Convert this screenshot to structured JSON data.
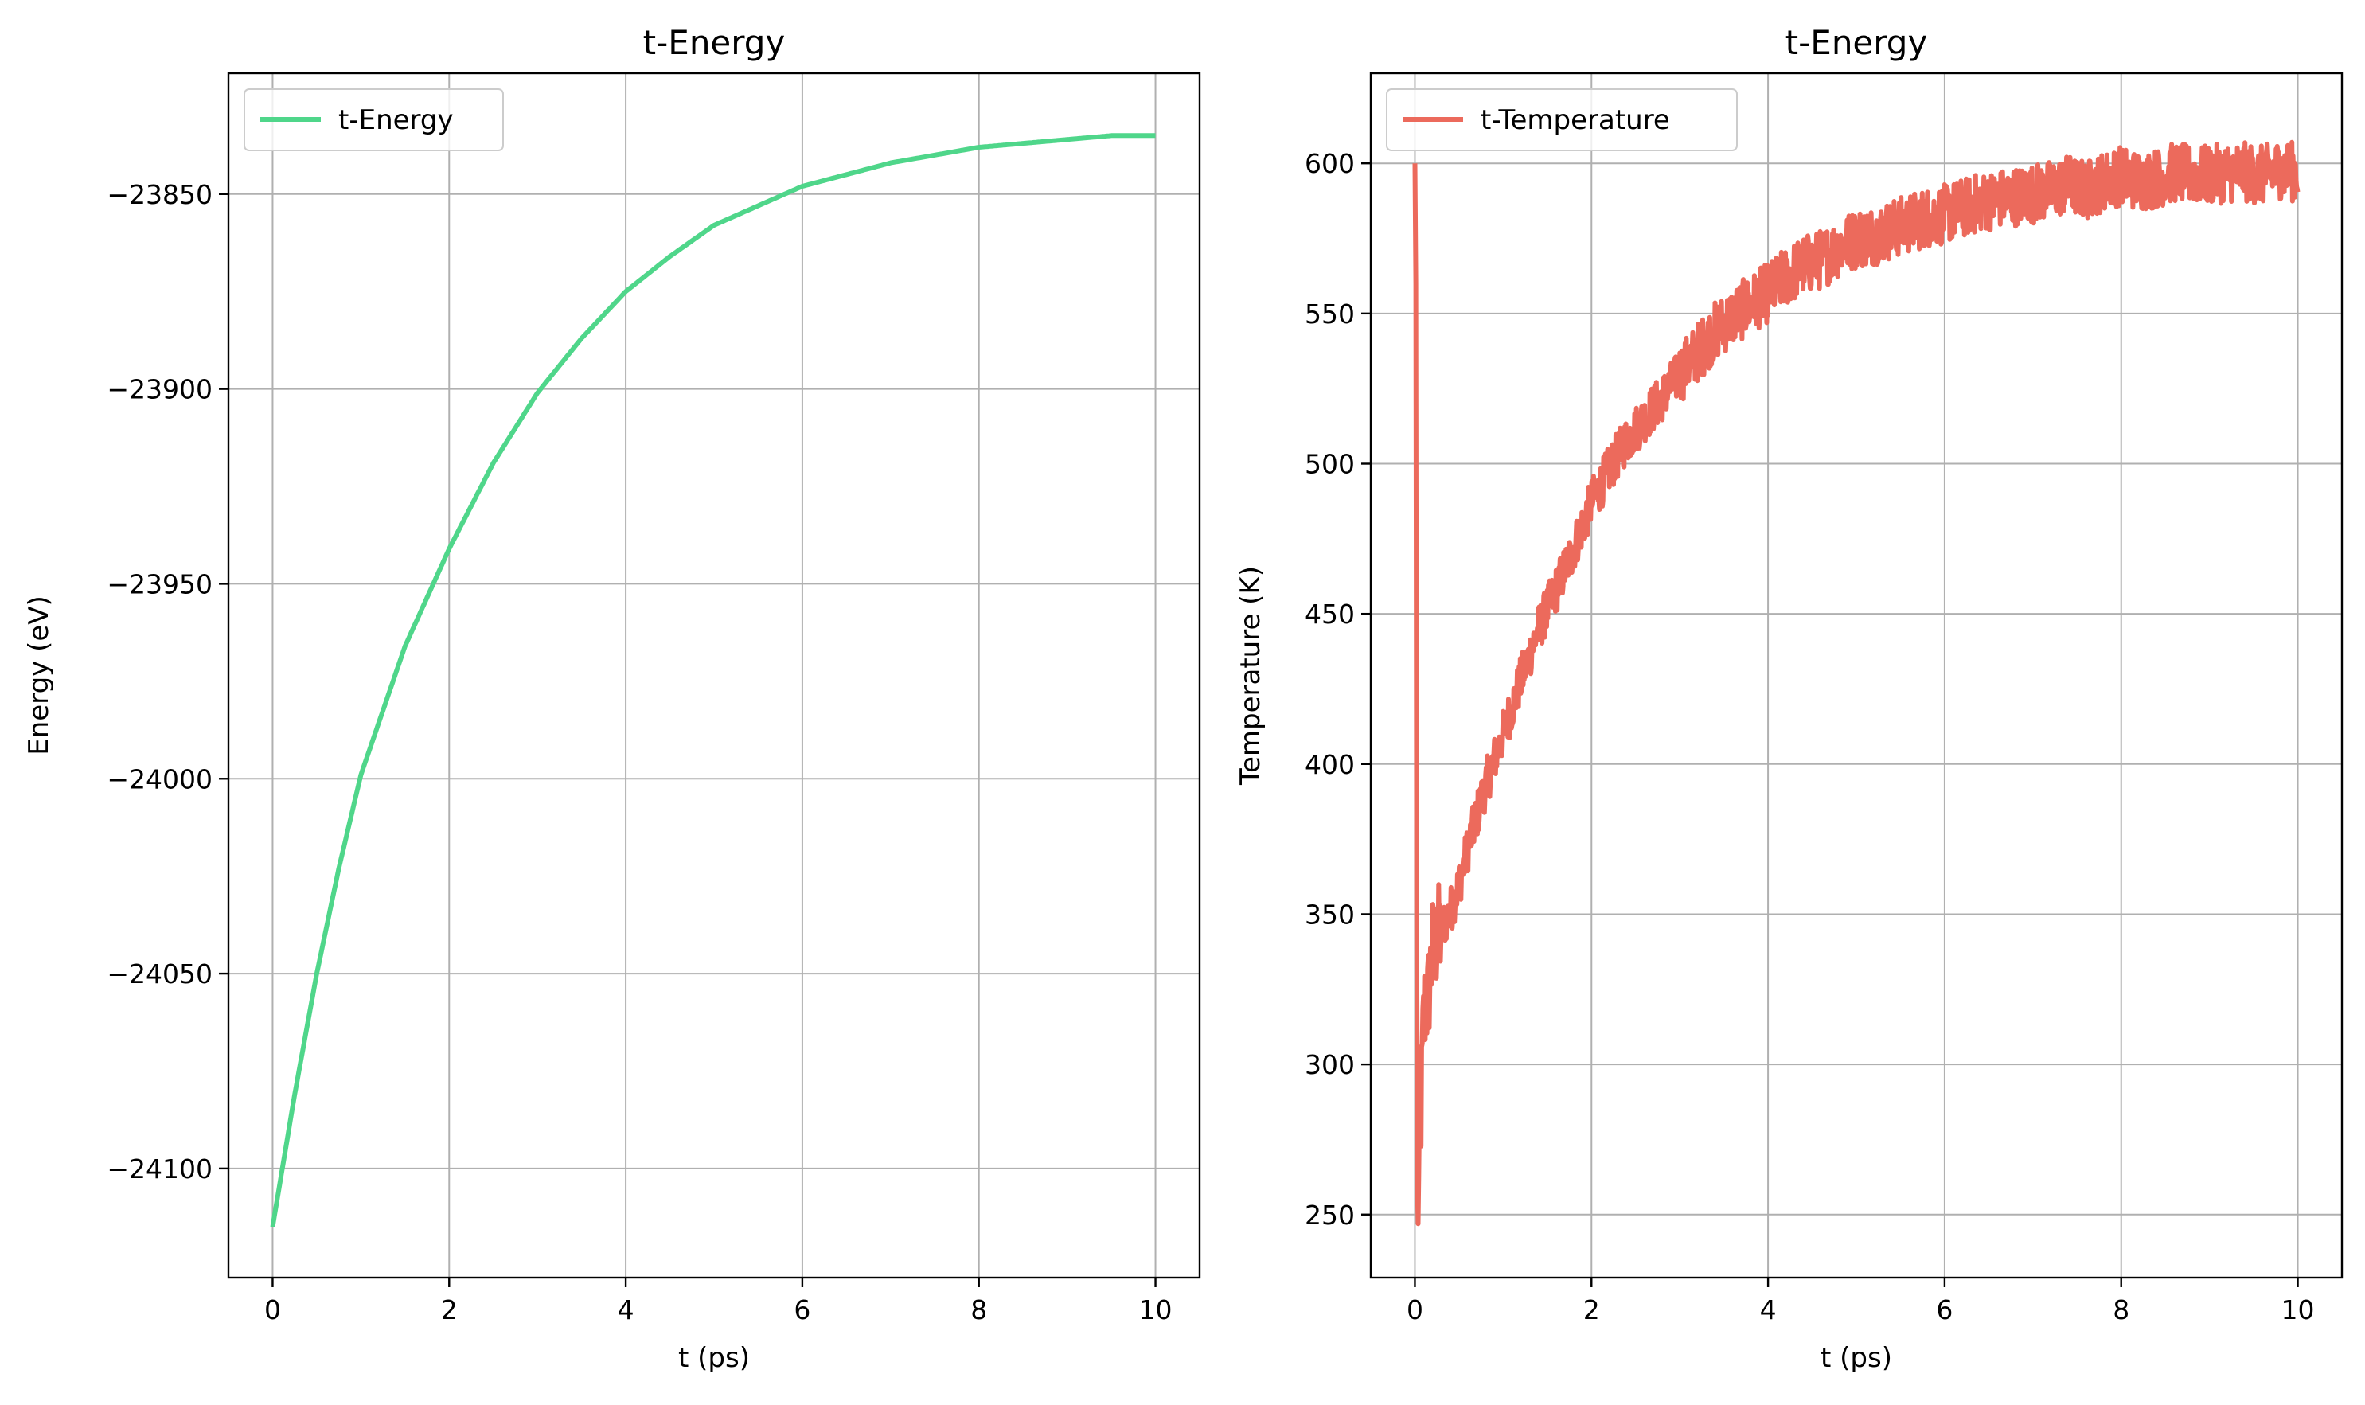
{
  "chart_data": [
    {
      "type": "line",
      "title": "t-Energy",
      "xlabel": "t (ps)",
      "ylabel": "Energy (eV)",
      "xlim": [
        -0.5,
        10.5
      ],
      "ylim": [
        -24128,
        -23819
      ],
      "xticks": [
        0,
        2,
        4,
        6,
        8,
        10
      ],
      "yticks": [
        -24100,
        -24050,
        -24000,
        -23950,
        -23900,
        -23850
      ],
      "ytick_labels": [
        "−24100",
        "−24050",
        "−24000",
        "−23950",
        "−23900",
        "−23850"
      ],
      "grid": true,
      "legend_position": "top-left",
      "series": [
        {
          "name": "t-Energy",
          "color": "#4fd68a",
          "x": [
            0,
            0.25,
            0.5,
            0.75,
            1,
            1.5,
            2,
            2.5,
            3,
            3.5,
            4,
            4.5,
            5,
            5.5,
            6,
            6.5,
            7,
            7.5,
            8,
            8.5,
            9,
            9.5,
            10
          ],
          "y": [
            -24115,
            -24081,
            -24050,
            -24023,
            -23999,
            -23966,
            -23941,
            -23919,
            -23901,
            -23887,
            -23875,
            -23866,
            -23858,
            -23853,
            -23848,
            -23845,
            -23842,
            -23840,
            -23838,
            -23837,
            -23836,
            -23835,
            -23835
          ]
        }
      ]
    },
    {
      "type": "line",
      "title": "t-Energy",
      "xlabel": "t (ps)",
      "ylabel": "Temperature (K)",
      "xlim": [
        -0.5,
        10.5
      ],
      "ylim": [
        229,
        630
      ],
      "xticks": [
        0,
        2,
        4,
        6,
        8,
        10
      ],
      "yticks": [
        250,
        300,
        350,
        400,
        450,
        500,
        550,
        600
      ],
      "grid": true,
      "legend_position": "top-left",
      "series": [
        {
          "name": "t-Temperature",
          "color": "#ec6a5c",
          "x": [
            0,
            0.01,
            0.02,
            0.03,
            0.05,
            0.08,
            0.1,
            0.15,
            0.2,
            0.3,
            0.4,
            0.5,
            0.6,
            0.8,
            1.0,
            1.2,
            1.4,
            1.6,
            1.8,
            2.0,
            2.2,
            2.4,
            2.6,
            2.8,
            3.0,
            3.2,
            3.4,
            3.6,
            3.8,
            4.0,
            4.2,
            4.4,
            4.6,
            4.8,
            5.0,
            5.2,
            5.4,
            5.6,
            5.8,
            6.0,
            6.2,
            6.4,
            6.6,
            6.8,
            7.0,
            7.2,
            7.4,
            7.6,
            7.8,
            8.0,
            8.2,
            8.4,
            8.6,
            8.8,
            9.0,
            9.2,
            9.4,
            9.6,
            9.8,
            10.0
          ],
          "y": [
            600,
            560,
            350,
            250,
            262,
            296,
            318,
            322,
            338,
            345,
            351,
            360,
            372,
            393,
            410,
            428,
            445,
            458,
            472,
            487,
            498,
            508,
            515,
            522,
            530,
            537,
            544,
            549,
            553,
            557,
            562,
            566,
            568,
            572,
            575,
            576,
            578,
            580,
            582,
            583,
            585,
            587,
            588,
            589,
            590,
            591,
            593,
            591,
            594,
            596,
            594,
            595,
            597,
            596,
            596,
            597,
            597,
            596,
            598,
            597
          ]
        }
      ]
    }
  ]
}
